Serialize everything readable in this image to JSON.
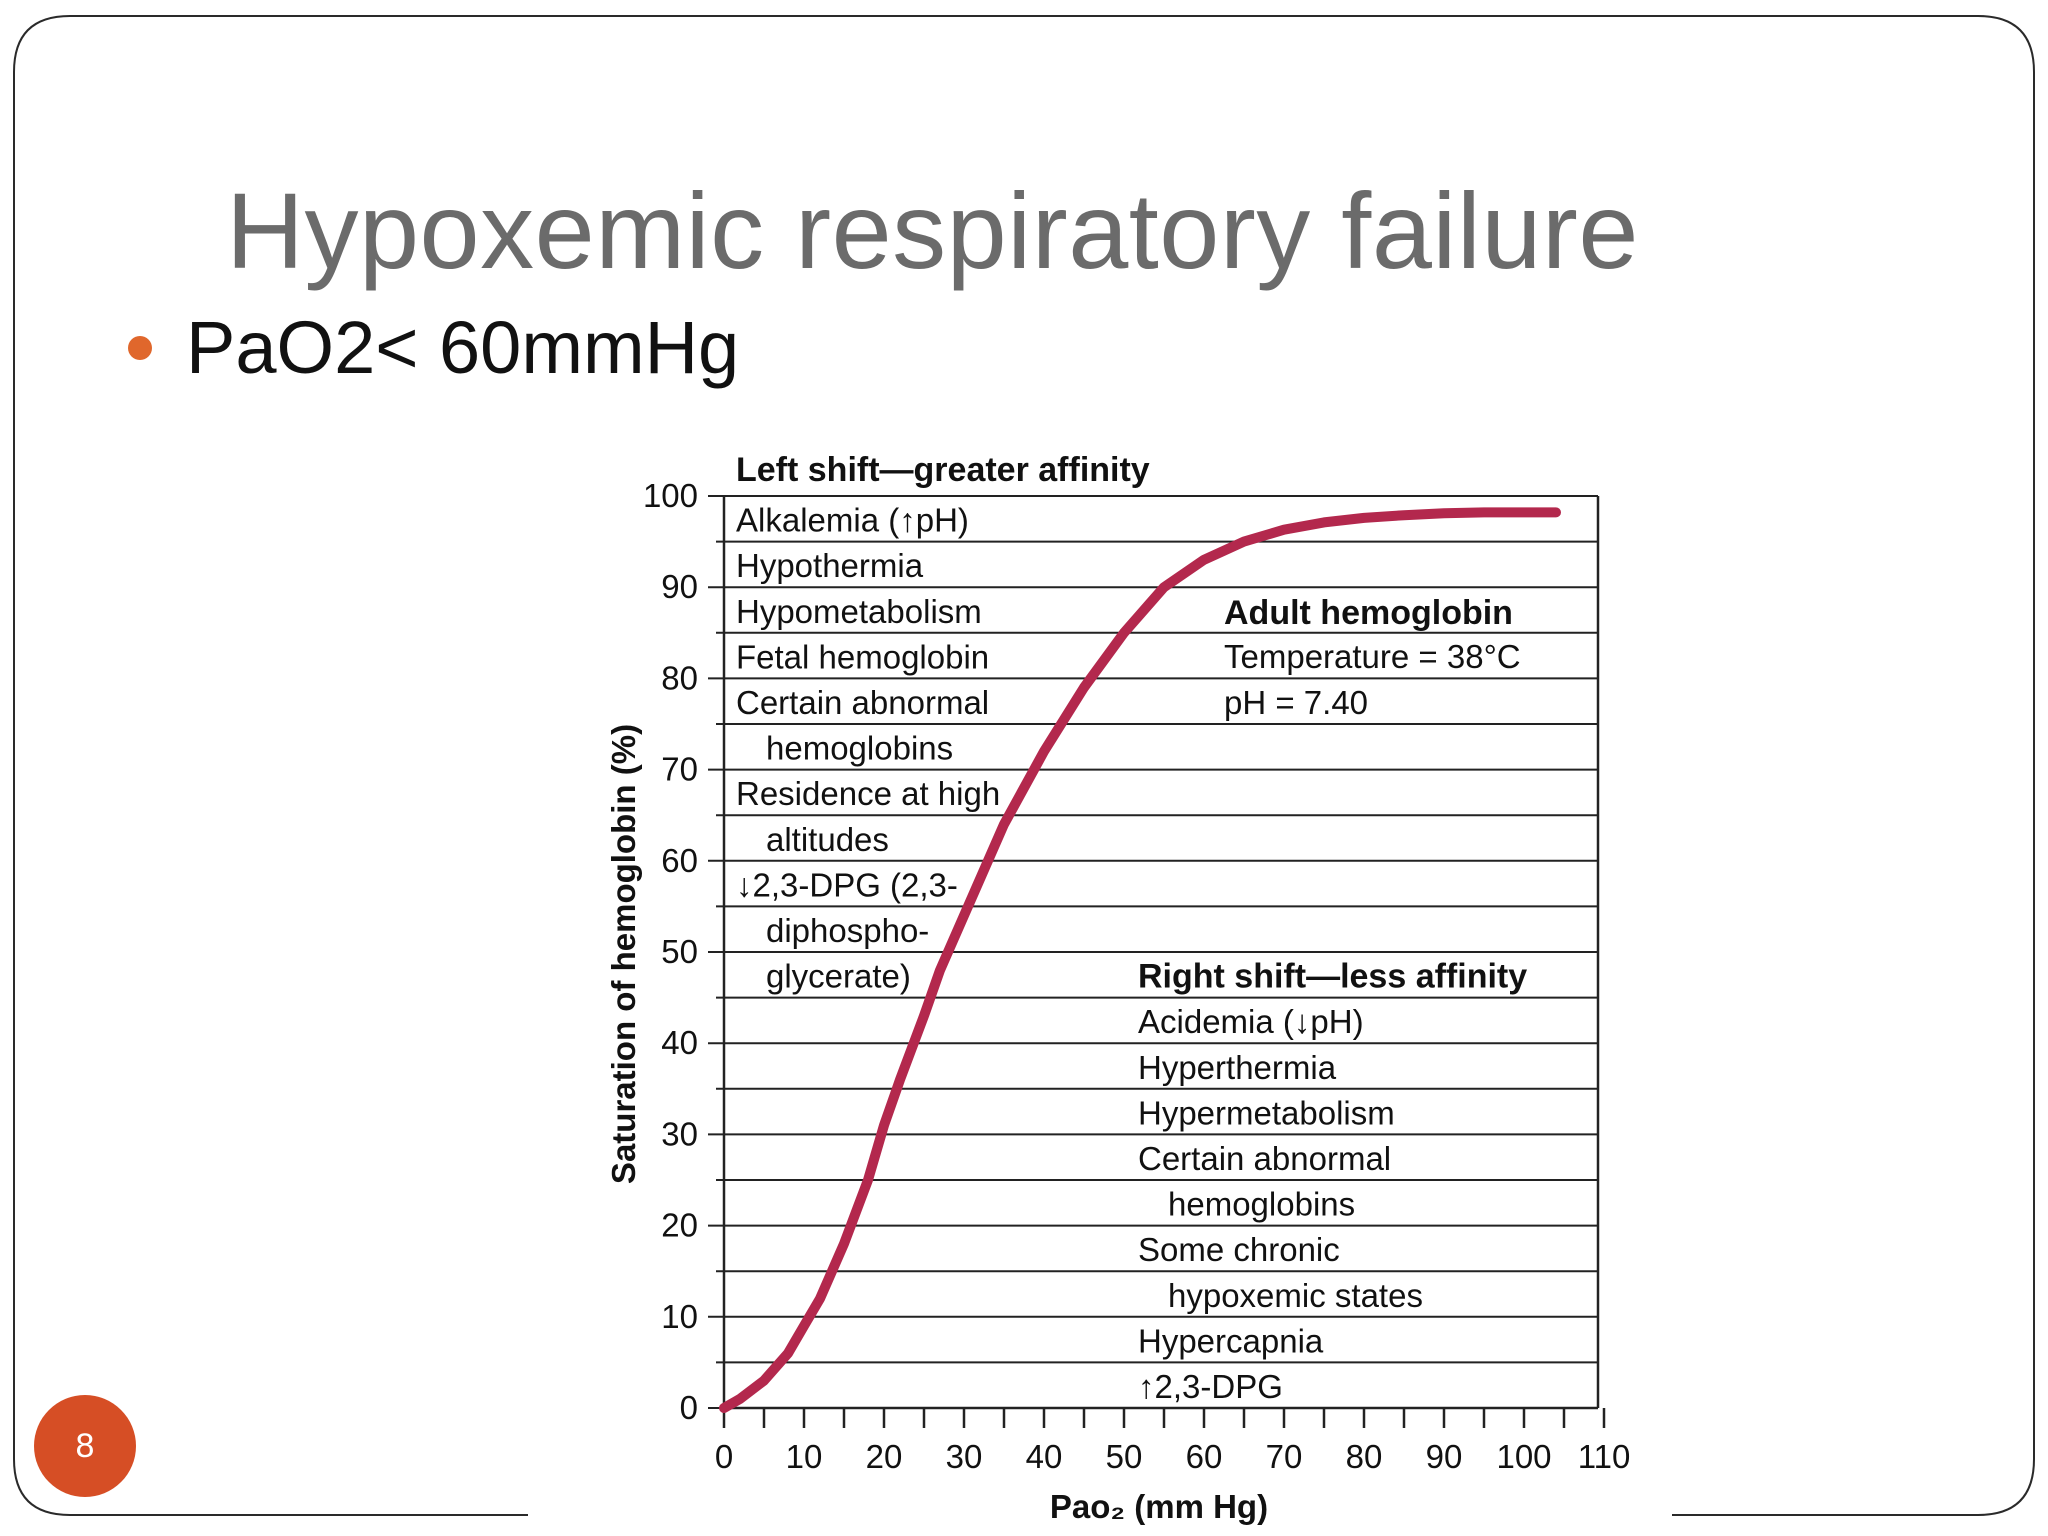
{
  "slide": {
    "title": "Hypoxemic respiratory failure",
    "bullet": "PaO2< 60mmHg",
    "page_number": "8",
    "accent_color": "#e0672c",
    "badge_color": "#d64e25"
  },
  "chart_data": {
    "type": "line",
    "xlabel": "Pao₂ (mm Hg)",
    "ylabel": "Saturation of hemoglobin (%)",
    "xlim": [
      0,
      110
    ],
    "ylim": [
      0,
      100
    ],
    "x_ticks": [
      "0",
      "10",
      "20",
      "30",
      "40",
      "50",
      "60",
      "70",
      "80",
      "90",
      "100",
      "110"
    ],
    "y_ticks": [
      "0",
      "10",
      "20",
      "30",
      "40",
      "50",
      "60",
      "70",
      "80",
      "90",
      "100"
    ],
    "grid": true,
    "series": [
      {
        "color": "#b3284d",
        "x": [
          0,
          2,
          5,
          8,
          10,
          12,
          15,
          18,
          20,
          22,
          25,
          27,
          30,
          33,
          35,
          40,
          45,
          50,
          55,
          60,
          65,
          70,
          75,
          80,
          85,
          90,
          95,
          100,
          104
        ],
        "y": [
          0,
          1,
          3,
          6,
          9,
          12,
          18,
          25,
          31,
          36,
          43,
          48,
          54,
          60,
          64,
          72,
          79,
          85,
          90,
          93,
          95,
          96.3,
          97.1,
          97.6,
          97.9,
          98.1,
          98.2,
          98.2,
          98.2
        ]
      }
    ],
    "left_panel": {
      "heading": "Left shift—greater affinity",
      "lines": [
        "Alkalemia (↑pH)",
        "Hypothermia",
        "Hypometabolism",
        "Fetal hemoglobin",
        "Certain abnormal",
        "hemoglobins",
        "Residence at high",
        "altitudes",
        "↓2,3-DPG (2,3-",
        "diphospho-",
        "glycerate)"
      ]
    },
    "adult_panel": {
      "heading": "Adult hemoglobin",
      "lines": [
        "Temperature = 38°C",
        "pH = 7.40"
      ]
    },
    "right_panel": {
      "heading": "Right shift—less affinity",
      "lines": [
        "Acidemia (↓pH)",
        "Hyperthermia",
        "Hypermetabolism",
        "Certain abnormal",
        "hemoglobins",
        "Some chronic",
        "hypoxemic states",
        "Hypercapnia",
        "↑2,3-DPG"
      ]
    }
  }
}
